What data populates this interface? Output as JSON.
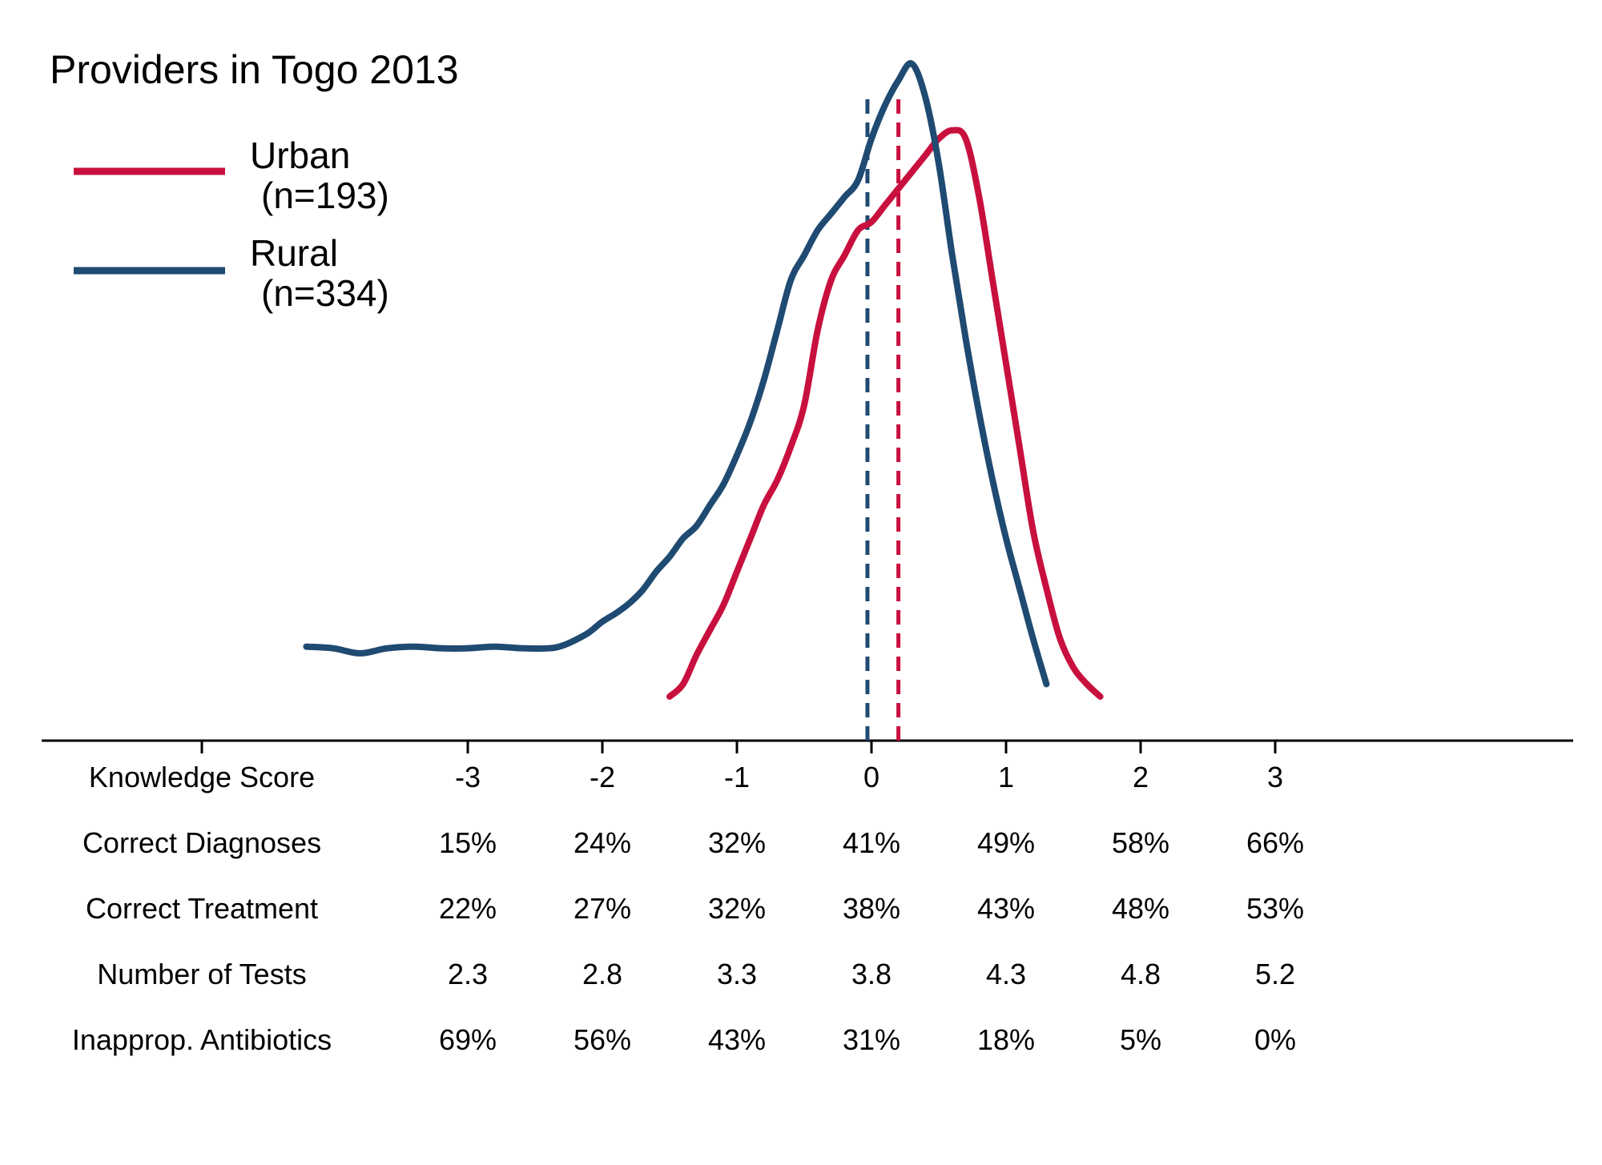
{
  "chart_data": {
    "type": "line",
    "title": "Providers in Togo 2013",
    "colors": {
      "urban": "#c8103e",
      "rural": "#1f4a72",
      "axis": "#000000"
    },
    "xlim": [
      -4.95,
      6.45
    ],
    "series": [
      {
        "name": "Urban",
        "n_label": "(n=193)",
        "color": "#c8103e",
        "mean": 0.2,
        "x": [
          -1.5,
          -1.4,
          -1.3,
          -1.2,
          -1.1,
          -1.0,
          -0.9,
          -0.8,
          -0.7,
          -0.6,
          -0.5,
          -0.4,
          -0.3,
          -0.2,
          -0.1,
          0.0,
          0.1,
          0.2,
          0.3,
          0.4,
          0.5,
          0.6,
          0.7,
          0.8,
          0.9,
          1.0,
          1.1,
          1.2,
          1.3,
          1.4,
          1.5,
          1.6,
          1.7
        ],
        "y": [
          0.0,
          0.015,
          0.05,
          0.08,
          0.11,
          0.15,
          0.19,
          0.23,
          0.26,
          0.3,
          0.35,
          0.44,
          0.5,
          0.53,
          0.56,
          0.57,
          0.59,
          0.61,
          0.63,
          0.65,
          0.67,
          0.68,
          0.67,
          0.6,
          0.5,
          0.4,
          0.3,
          0.2,
          0.13,
          0.07,
          0.035,
          0.015,
          0.0
        ]
      },
      {
        "name": "Rural",
        "n_label": "(n=334)",
        "color": "#1f4a72",
        "mean": -0.03,
        "x": [
          -4.2,
          -4.0,
          -3.8,
          -3.6,
          -3.4,
          -3.2,
          -3.0,
          -2.8,
          -2.6,
          -2.4,
          -2.3,
          -2.2,
          -2.1,
          -2.0,
          -1.9,
          -1.8,
          -1.7,
          -1.6,
          -1.5,
          -1.4,
          -1.3,
          -1.2,
          -1.1,
          -1.0,
          -0.9,
          -0.8,
          -0.7,
          -0.6,
          -0.5,
          -0.4,
          -0.3,
          -0.2,
          -0.1,
          0.0,
          0.1,
          0.2,
          0.3,
          0.4,
          0.5,
          0.6,
          0.7,
          0.8,
          0.9,
          1.0,
          1.1,
          1.2,
          1.3
        ],
        "y": [
          0.06,
          0.058,
          0.052,
          0.058,
          0.06,
          0.058,
          0.058,
          0.06,
          0.058,
          0.058,
          0.061,
          0.068,
          0.077,
          0.09,
          0.1,
          0.112,
          0.128,
          0.15,
          0.168,
          0.19,
          0.205,
          0.23,
          0.255,
          0.29,
          0.33,
          0.38,
          0.44,
          0.5,
          0.53,
          0.56,
          0.58,
          0.6,
          0.62,
          0.67,
          0.71,
          0.74,
          0.76,
          0.72,
          0.64,
          0.53,
          0.43,
          0.34,
          0.26,
          0.19,
          0.13,
          0.07,
          0.015
        ]
      }
    ],
    "table": {
      "x_positions": [
        -3,
        -2,
        -1,
        0,
        1,
        2,
        3
      ],
      "rows": [
        {
          "label": "Knowledge Score",
          "values": [
            "-3",
            "-2",
            "-1",
            "0",
            "1",
            "2",
            "3"
          ]
        },
        {
          "label": "Correct Diagnoses",
          "values": [
            "15%",
            "24%",
            "32%",
            "41%",
            "49%",
            "58%",
            "66%"
          ]
        },
        {
          "label": "Correct Treatment",
          "values": [
            "22%",
            "27%",
            "32%",
            "38%",
            "43%",
            "48%",
            "53%"
          ]
        },
        {
          "label": "Number of Tests",
          "values": [
            "2.3",
            "2.8",
            "3.3",
            "3.8",
            "4.3",
            "4.8",
            "5.2"
          ]
        },
        {
          "label": "Inapprop. Antibiotics",
          "values": [
            "69%",
            "56%",
            "43%",
            "31%",
            "18%",
            "5%",
            "0%"
          ]
        }
      ]
    }
  }
}
